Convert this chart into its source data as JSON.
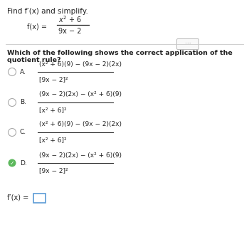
{
  "bg_color": "#ffffff",
  "title_text": "Find f′(x) and simplify.",
  "fx_label": "f(x) =",
  "fx_num": "$x^2 + 6$",
  "fx_den": "$9x - 2$",
  "question": "Which of the following shows the correct application of the quotient rule?",
  "options": [
    {
      "letter": "A.",
      "num_plain": "(x² + 6)(9) − (9x − 2)(2x)",
      "den_plain": "[9x − 2]²",
      "selected": false,
      "correct": false
    },
    {
      "letter": "B.",
      "num_plain": "(9x − 2)(2x) − (x² + 6)(9)",
      "den_plain": "[x² + 6]²",
      "selected": false,
      "correct": false
    },
    {
      "letter": "C.",
      "num_plain": "(x² + 6)(9) − (9x − 2)(2x)",
      "den_plain": "[x² + 6]²",
      "selected": false,
      "correct": false
    },
    {
      "letter": "D.",
      "num_plain": "(9x − 2)(2x) − (x² + 6)(9)",
      "den_plain": "[9x − 2]²",
      "selected": true,
      "correct": true
    }
  ],
  "answer_label": "f′(x) =",
  "fs_title": 7.5,
  "fs_question": 6.8,
  "fs_math": 7.0,
  "fs_label": 7.0,
  "fs_small": 6.5,
  "divider_color": "#c8c8c8",
  "radio_color": "#aaaaaa",
  "check_color": "#5cb85c",
  "answer_box_color": "#5b9bd5",
  "ellipsis_color": "#aaaaaa",
  "text_color": "#222222"
}
